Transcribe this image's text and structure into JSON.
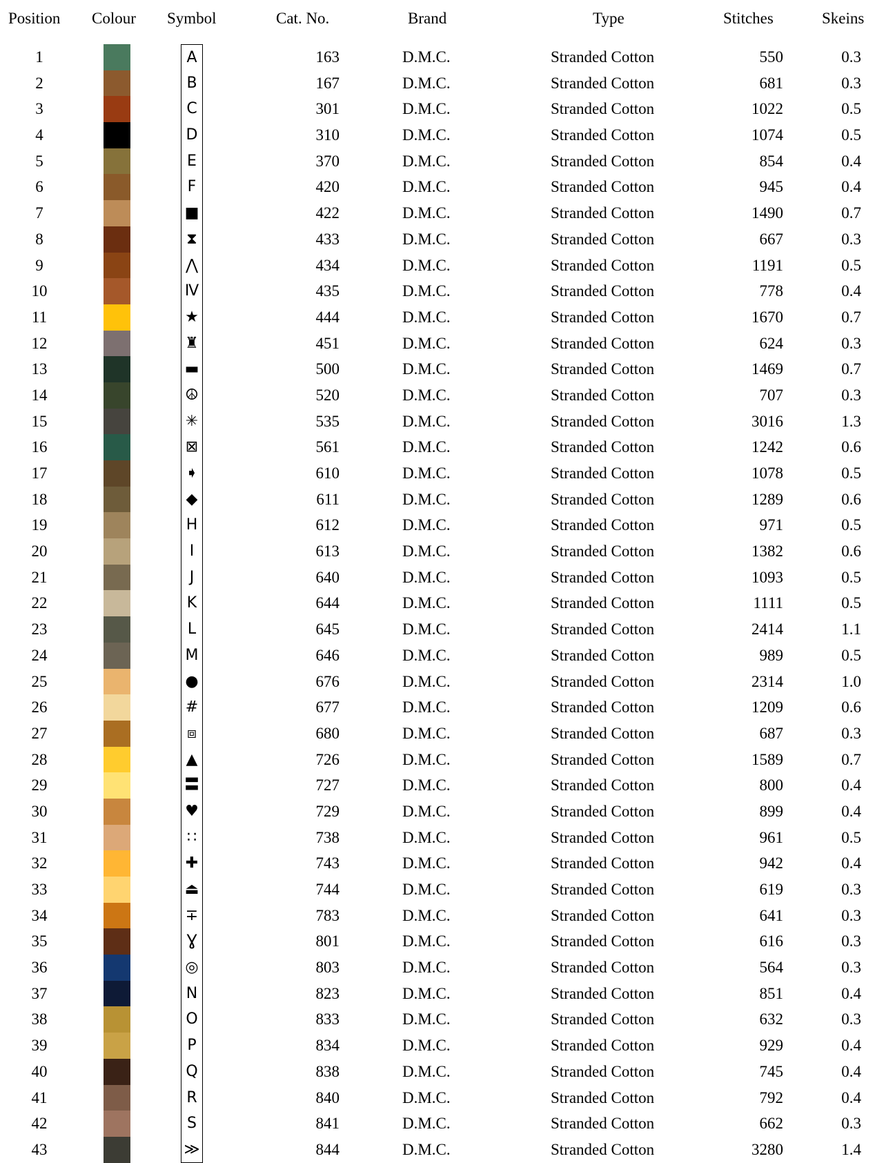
{
  "header": {
    "position": "Position",
    "colour": "Colour",
    "symbol": "Symbol",
    "cat_no": "Cat. No.",
    "brand": "Brand",
    "type": "Type",
    "stitches": "Stitches",
    "skeins": "Skeins"
  },
  "rows": [
    {
      "position": "1",
      "colour": "#4a7a5e",
      "symbol": "A",
      "cat_no": "163",
      "brand": "D.M.C.",
      "type": "Stranded Cotton",
      "stitches": "550",
      "skeins": "0.3"
    },
    {
      "position": "2",
      "colour": "#8c5a2e",
      "symbol": "B",
      "cat_no": "167",
      "brand": "D.M.C.",
      "type": "Stranded Cotton",
      "stitches": "681",
      "skeins": "0.3"
    },
    {
      "position": "3",
      "colour": "#993b12",
      "symbol": "C",
      "cat_no": "301",
      "brand": "D.M.C.",
      "type": "Stranded Cotton",
      "stitches": "1022",
      "skeins": "0.5"
    },
    {
      "position": "4",
      "colour": "#000000",
      "symbol": "D",
      "cat_no": "310",
      "brand": "D.M.C.",
      "type": "Stranded Cotton",
      "stitches": "1074",
      "skeins": "0.5"
    },
    {
      "position": "5",
      "colour": "#86723a",
      "symbol": "E",
      "cat_no": "370",
      "brand": "D.M.C.",
      "type": "Stranded Cotton",
      "stitches": "854",
      "skeins": "0.4"
    },
    {
      "position": "6",
      "colour": "#8a5a2a",
      "symbol": "F",
      "cat_no": "420",
      "brand": "D.M.C.",
      "type": "Stranded Cotton",
      "stitches": "945",
      "skeins": "0.4"
    },
    {
      "position": "7",
      "colour": "#bd8c58",
      "symbol": "■",
      "cat_no": "422",
      "brand": "D.M.C.",
      "type": "Stranded Cotton",
      "stitches": "1490",
      "skeins": "0.7"
    },
    {
      "position": "8",
      "colour": "#6b2e10",
      "symbol": "⧗",
      "cat_no": "433",
      "brand": "D.M.C.",
      "type": "Stranded Cotton",
      "stitches": "667",
      "skeins": "0.3"
    },
    {
      "position": "9",
      "colour": "#8a4414",
      "symbol": "⋀",
      "cat_no": "434",
      "brand": "D.M.C.",
      "type": "Stranded Cotton",
      "stitches": "1191",
      "skeins": "0.5"
    },
    {
      "position": "10",
      "colour": "#a5582a",
      "symbol": "Ⅳ",
      "cat_no": "435",
      "brand": "D.M.C.",
      "type": "Stranded Cotton",
      "stitches": "778",
      "skeins": "0.4"
    },
    {
      "position": "11",
      "colour": "#ffc20a",
      "symbol": "★",
      "cat_no": "444",
      "brand": "D.M.C.",
      "type": "Stranded Cotton",
      "stitches": "1670",
      "skeins": "0.7"
    },
    {
      "position": "12",
      "colour": "#7d7070",
      "symbol": "♜",
      "cat_no": "451",
      "brand": "D.M.C.",
      "type": "Stranded Cotton",
      "stitches": "624",
      "skeins": "0.3"
    },
    {
      "position": "13",
      "colour": "#1f3428",
      "symbol": "▬",
      "cat_no": "500",
      "brand": "D.M.C.",
      "type": "Stranded Cotton",
      "stitches": "1469",
      "skeins": "0.7"
    },
    {
      "position": "14",
      "colour": "#38452c",
      "symbol": "☮",
      "cat_no": "520",
      "brand": "D.M.C.",
      "type": "Stranded Cotton",
      "stitches": "707",
      "skeins": "0.3"
    },
    {
      "position": "15",
      "colour": "#46443e",
      "symbol": "✳",
      "cat_no": "535",
      "brand": "D.M.C.",
      "type": "Stranded Cotton",
      "stitches": "3016",
      "skeins": "1.3"
    },
    {
      "position": "16",
      "colour": "#285a48",
      "symbol": "⊠",
      "cat_no": "561",
      "brand": "D.M.C.",
      "type": "Stranded Cotton",
      "stitches": "1242",
      "skeins": "0.6"
    },
    {
      "position": "17",
      "colour": "#5e4628",
      "symbol": "➧",
      "cat_no": "610",
      "brand": "D.M.C.",
      "type": "Stranded Cotton",
      "stitches": "1078",
      "skeins": "0.5"
    },
    {
      "position": "18",
      "colour": "#6e5c3a",
      "symbol": "◆",
      "cat_no": "611",
      "brand": "D.M.C.",
      "type": "Stranded Cotton",
      "stitches": "1289",
      "skeins": "0.6"
    },
    {
      "position": "19",
      "colour": "#9e845c",
      "symbol": "H",
      "cat_no": "612",
      "brand": "D.M.C.",
      "type": "Stranded Cotton",
      "stitches": "971",
      "skeins": "0.5"
    },
    {
      "position": "20",
      "colour": "#b7a27b",
      "symbol": "I",
      "cat_no": "613",
      "brand": "D.M.C.",
      "type": "Stranded Cotton",
      "stitches": "1382",
      "skeins": "0.6"
    },
    {
      "position": "21",
      "colour": "#786a50",
      "symbol": "J",
      "cat_no": "640",
      "brand": "D.M.C.",
      "type": "Stranded Cotton",
      "stitches": "1093",
      "skeins": "0.5"
    },
    {
      "position": "22",
      "colour": "#c8b89a",
      "symbol": "K",
      "cat_no": "644",
      "brand": "D.M.C.",
      "type": "Stranded Cotton",
      "stitches": "1111",
      "skeins": "0.5"
    },
    {
      "position": "23",
      "colour": "#565848",
      "symbol": "L",
      "cat_no": "645",
      "brand": "D.M.C.",
      "type": "Stranded Cotton",
      "stitches": "2414",
      "skeins": "1.1"
    },
    {
      "position": "24",
      "colour": "#6c6454",
      "symbol": "M",
      "cat_no": "646",
      "brand": "D.M.C.",
      "type": "Stranded Cotton",
      "stitches": "989",
      "skeins": "0.5"
    },
    {
      "position": "25",
      "colour": "#eab46e",
      "symbol": "●",
      "cat_no": "676",
      "brand": "D.M.C.",
      "type": "Stranded Cotton",
      "stitches": "2314",
      "skeins": "1.0"
    },
    {
      "position": "26",
      "colour": "#f2d79c",
      "symbol": "#",
      "cat_no": "677",
      "brand": "D.M.C.",
      "type": "Stranded Cotton",
      "stitches": "1209",
      "skeins": "0.6"
    },
    {
      "position": "27",
      "colour": "#aa6e22",
      "symbol": "⧈",
      "cat_no": "680",
      "brand": "D.M.C.",
      "type": "Stranded Cotton",
      "stitches": "687",
      "skeins": "0.3"
    },
    {
      "position": "28",
      "colour": "#ffcc2e",
      "symbol": "▲",
      "cat_no": "726",
      "brand": "D.M.C.",
      "type": "Stranded Cotton",
      "stitches": "1589",
      "skeins": "0.7"
    },
    {
      "position": "29",
      "colour": "#ffe274",
      "symbol": "〓",
      "cat_no": "727",
      "brand": "D.M.C.",
      "type": "Stranded Cotton",
      "stitches": "800",
      "skeins": "0.4"
    },
    {
      "position": "30",
      "colour": "#c8863e",
      "symbol": "♥",
      "cat_no": "729",
      "brand": "D.M.C.",
      "type": "Stranded Cotton",
      "stitches": "899",
      "skeins": "0.4"
    },
    {
      "position": "31",
      "colour": "#dca878",
      "symbol": "∷",
      "cat_no": "738",
      "brand": "D.M.C.",
      "type": "Stranded Cotton",
      "stitches": "961",
      "skeins": "0.5"
    },
    {
      "position": "32",
      "colour": "#ffb634",
      "symbol": "✚",
      "cat_no": "743",
      "brand": "D.M.C.",
      "type": "Stranded Cotton",
      "stitches": "942",
      "skeins": "0.4"
    },
    {
      "position": "33",
      "colour": "#ffd470",
      "symbol": "⏏",
      "cat_no": "744",
      "brand": "D.M.C.",
      "type": "Stranded Cotton",
      "stitches": "619",
      "skeins": "0.3"
    },
    {
      "position": "34",
      "colour": "#cc7614",
      "symbol": "∓",
      "cat_no": "783",
      "brand": "D.M.C.",
      "type": "Stranded Cotton",
      "stitches": "641",
      "skeins": "0.3"
    },
    {
      "position": "35",
      "colour": "#5e2e16",
      "symbol": "Ɣ",
      "cat_no": "801",
      "brand": "D.M.C.",
      "type": "Stranded Cotton",
      "stitches": "616",
      "skeins": "0.3"
    },
    {
      "position": "36",
      "colour": "#143870",
      "symbol": "◎",
      "cat_no": "803",
      "brand": "D.M.C.",
      "type": "Stranded Cotton",
      "stitches": "564",
      "skeins": "0.3"
    },
    {
      "position": "37",
      "colour": "#0e1a36",
      "symbol": "N",
      "cat_no": "823",
      "brand": "D.M.C.",
      "type": "Stranded Cotton",
      "stitches": "851",
      "skeins": "0.4"
    },
    {
      "position": "38",
      "colour": "#b89234",
      "symbol": "O",
      "cat_no": "833",
      "brand": "D.M.C.",
      "type": "Stranded Cotton",
      "stitches": "632",
      "skeins": "0.3"
    },
    {
      "position": "39",
      "colour": "#c9a246",
      "symbol": "P",
      "cat_no": "834",
      "brand": "D.M.C.",
      "type": "Stranded Cotton",
      "stitches": "929",
      "skeins": "0.4"
    },
    {
      "position": "40",
      "colour": "#3a2216",
      "symbol": "Q",
      "cat_no": "838",
      "brand": "D.M.C.",
      "type": "Stranded Cotton",
      "stitches": "745",
      "skeins": "0.4"
    },
    {
      "position": "41",
      "colour": "#7e5c48",
      "symbol": "R",
      "cat_no": "840",
      "brand": "D.M.C.",
      "type": "Stranded Cotton",
      "stitches": "792",
      "skeins": "0.4"
    },
    {
      "position": "42",
      "colour": "#9e7460",
      "symbol": "S",
      "cat_no": "841",
      "brand": "D.M.C.",
      "type": "Stranded Cotton",
      "stitches": "662",
      "skeins": "0.3"
    },
    {
      "position": "43",
      "colour": "#3c3c34",
      "symbol": "≫",
      "cat_no": "844",
      "brand": "D.M.C.",
      "type": "Stranded Cotton",
      "stitches": "3280",
      "skeins": "1.4"
    }
  ]
}
